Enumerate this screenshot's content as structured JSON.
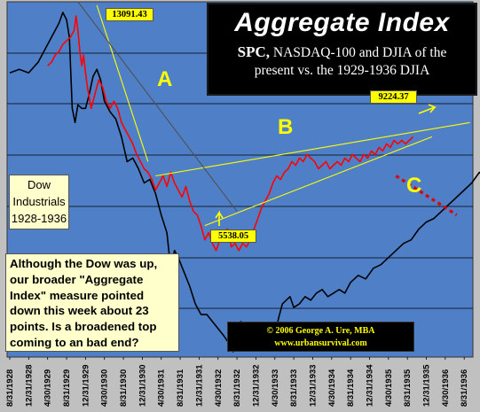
{
  "title": "Aggregate Index",
  "subtitle_bold": "SPC,",
  "subtitle_rest": " NASDAQ-100 and DJIA of the",
  "subtitle_line2": "present vs. the 1929-1936 DJIA",
  "dow_label": [
    "Dow",
    "Industrials",
    "1928-1936"
  ],
  "note_text": "Although the Dow was up, our broader \"Aggregate Index\" measure pointed down this week about 23 points.  Is a broadened top coming to an bad end?",
  "copyright": [
    "© 2006  George A. Ure, MBA",
    "www.urbansurvival.com"
  ],
  "callouts": {
    "peak": "13091.43",
    "low": "5538.05",
    "end": "9224.37"
  },
  "pattern_labels": {
    "a": "A",
    "b": "B",
    "c": "C"
  },
  "colors": {
    "plot_background": "#4f80c7",
    "chart_frame": "#c0c0c0",
    "dow_line": "#000000",
    "aggregate_line": "#ff0000",
    "trendline_yellow": "#ffff00",
    "trendline_dark": "#505050",
    "projection_dotted": "#dd0000",
    "gridline": "#000000"
  },
  "chart_data": {
    "type": "line",
    "x_tick_labels": [
      "8/31/1928",
      "12/31/1928",
      "4/30/1929",
      "8/31/1929",
      "12/31/1929",
      "4/30/1930",
      "8/31/1930",
      "12/31/1930",
      "4/30/1931",
      "8/31/1931",
      "12/31/1931",
      "4/30/1932",
      "8/31/1932",
      "12/31/1932",
      "4/30/1933",
      "8/31/1933",
      "12/31/1933",
      "4/30/1934",
      "8/31/1934",
      "12/31/1934",
      "4/30/1935",
      "8/31/1935",
      "12/31/1935",
      "4/30/1936",
      "8/31/1936"
    ],
    "grid": "horizontal",
    "series": [
      {
        "key": "dow_1928_1936",
        "points": [
          [
            0,
            0.8
          ],
          [
            0.5,
            0.81
          ],
          [
            1,
            0.8
          ],
          [
            1.5,
            0.83
          ],
          [
            2,
            0.88
          ],
          [
            2.3,
            0.91
          ],
          [
            2.6,
            0.94
          ],
          [
            2.8,
            0.97
          ],
          [
            3.0,
            0.95
          ],
          [
            3.15,
            0.9
          ],
          [
            3.3,
            0.7
          ],
          [
            3.45,
            0.66
          ],
          [
            3.6,
            0.71
          ],
          [
            3.8,
            0.7
          ],
          [
            4.0,
            0.7
          ],
          [
            4.2,
            0.74
          ],
          [
            4.4,
            0.79
          ],
          [
            4.6,
            0.81
          ],
          [
            4.8,
            0.78
          ],
          [
            5.0,
            0.72
          ],
          [
            5.3,
            0.69
          ],
          [
            5.6,
            0.67
          ],
          [
            5.9,
            0.62
          ],
          [
            6.2,
            0.55
          ],
          [
            6.5,
            0.56
          ],
          [
            6.8,
            0.53
          ],
          [
            7.1,
            0.49
          ],
          [
            7.4,
            0.5
          ],
          [
            7.7,
            0.46
          ],
          [
            8.0,
            0.4
          ],
          [
            8.3,
            0.35
          ],
          [
            8.5,
            0.25
          ],
          [
            8.7,
            0.3
          ],
          [
            8.9,
            0.28
          ],
          [
            9.2,
            0.24
          ],
          [
            9.5,
            0.2
          ],
          [
            9.8,
            0.15
          ],
          [
            10.1,
            0.12
          ],
          [
            10.4,
            0.12
          ],
          [
            10.7,
            0.1
          ],
          [
            11.0,
            0.08
          ],
          [
            11.3,
            0.06
          ],
          [
            11.5,
            0.045
          ],
          [
            11.65,
            0.03
          ],
          [
            11.8,
            0.015
          ],
          [
            12.0,
            0.06
          ],
          [
            12.2,
            0.1
          ],
          [
            12.5,
            0.085
          ],
          [
            12.8,
            0.07
          ],
          [
            13.1,
            0.08
          ],
          [
            13.4,
            0.065
          ],
          [
            13.6,
            0.055
          ],
          [
            13.8,
            0.048
          ],
          [
            14.0,
            0.06
          ],
          [
            14.2,
            0.11
          ],
          [
            14.4,
            0.15
          ],
          [
            14.6,
            0.16
          ],
          [
            14.8,
            0.17
          ],
          [
            15.0,
            0.14
          ],
          [
            15.3,
            0.15
          ],
          [
            15.6,
            0.17
          ],
          [
            15.9,
            0.16
          ],
          [
            16.2,
            0.18
          ],
          [
            16.5,
            0.19
          ],
          [
            16.8,
            0.17
          ],
          [
            17.1,
            0.18
          ],
          [
            17.4,
            0.19
          ],
          [
            17.7,
            0.18
          ],
          [
            18.0,
            0.21
          ],
          [
            18.4,
            0.23
          ],
          [
            18.8,
            0.22
          ],
          [
            19.2,
            0.25
          ],
          [
            19.6,
            0.26
          ],
          [
            20.0,
            0.28
          ],
          [
            20.4,
            0.3
          ],
          [
            20.8,
            0.32
          ],
          [
            21.2,
            0.33
          ],
          [
            21.6,
            0.36
          ],
          [
            22.0,
            0.38
          ],
          [
            22.4,
            0.39
          ],
          [
            22.8,
            0.41
          ],
          [
            23.2,
            0.43
          ],
          [
            23.6,
            0.45
          ],
          [
            24.0,
            0.47
          ],
          [
            24.4,
            0.49
          ],
          [
            24.8,
            0.52
          ],
          [
            25.0,
            0.51
          ]
        ]
      },
      {
        "key": "aggregate_index",
        "points": [
          [
            2.0,
            0.82
          ],
          [
            2.2,
            0.83
          ],
          [
            2.4,
            0.85
          ],
          [
            2.6,
            0.86
          ],
          [
            2.8,
            0.88
          ],
          [
            3.0,
            0.89
          ],
          [
            3.2,
            0.9
          ],
          [
            3.4,
            0.92
          ],
          [
            3.5,
            0.96
          ],
          [
            3.6,
            0.92
          ],
          [
            3.7,
            0.86
          ],
          [
            3.8,
            0.82
          ],
          [
            3.9,
            0.85
          ],
          [
            4.0,
            0.8
          ],
          [
            4.1,
            0.76
          ],
          [
            4.3,
            0.7
          ],
          [
            4.5,
            0.74
          ],
          [
            4.7,
            0.78
          ],
          [
            4.9,
            0.76
          ],
          [
            5.1,
            0.72
          ],
          [
            5.3,
            0.7
          ],
          [
            5.5,
            0.72
          ],
          [
            5.7,
            0.7
          ],
          [
            5.9,
            0.66
          ],
          [
            6.1,
            0.64
          ],
          [
            6.3,
            0.62
          ],
          [
            6.5,
            0.6
          ],
          [
            6.7,
            0.57
          ],
          [
            6.9,
            0.55
          ],
          [
            7.1,
            0.53
          ],
          [
            7.3,
            0.52
          ],
          [
            7.5,
            0.5
          ],
          [
            7.7,
            0.47
          ],
          [
            7.9,
            0.49
          ],
          [
            8.1,
            0.51
          ],
          [
            8.3,
            0.48
          ],
          [
            8.5,
            0.52
          ],
          [
            8.7,
            0.49
          ],
          [
            8.9,
            0.47
          ],
          [
            9.1,
            0.45
          ],
          [
            9.3,
            0.48
          ],
          [
            9.5,
            0.44
          ],
          [
            9.7,
            0.41
          ],
          [
            9.9,
            0.4
          ],
          [
            10.1,
            0.37
          ],
          [
            10.3,
            0.33
          ],
          [
            10.5,
            0.35
          ],
          [
            10.7,
            0.32
          ],
          [
            10.9,
            0.3
          ],
          [
            11.1,
            0.33
          ],
          [
            11.3,
            0.35
          ],
          [
            11.5,
            0.36
          ],
          [
            11.7,
            0.31
          ],
          [
            11.9,
            0.32
          ],
          [
            12.1,
            0.3
          ],
          [
            12.3,
            0.32
          ],
          [
            12.5,
            0.31
          ],
          [
            12.7,
            0.33
          ],
          [
            12.9,
            0.36
          ],
          [
            13.1,
            0.39
          ],
          [
            13.3,
            0.42
          ],
          [
            13.5,
            0.44
          ],
          [
            13.7,
            0.46
          ],
          [
            13.9,
            0.49
          ],
          [
            14.1,
            0.51
          ],
          [
            14.3,
            0.5
          ],
          [
            14.5,
            0.52
          ],
          [
            14.7,
            0.53
          ],
          [
            14.9,
            0.55
          ],
          [
            15.1,
            0.54
          ],
          [
            15.3,
            0.56
          ],
          [
            15.5,
            0.55
          ],
          [
            15.7,
            0.57
          ],
          [
            15.9,
            0.56
          ],
          [
            16.1,
            0.55
          ],
          [
            16.3,
            0.53
          ],
          [
            16.5,
            0.54
          ],
          [
            16.7,
            0.55
          ],
          [
            16.9,
            0.53
          ],
          [
            17.1,
            0.54
          ],
          [
            17.3,
            0.55
          ],
          [
            17.5,
            0.54
          ],
          [
            17.7,
            0.56
          ],
          [
            17.9,
            0.55
          ],
          [
            18.1,
            0.57
          ],
          [
            18.3,
            0.56
          ],
          [
            18.5,
            0.55
          ],
          [
            18.7,
            0.57
          ],
          [
            18.9,
            0.56
          ],
          [
            19.1,
            0.58
          ],
          [
            19.3,
            0.57
          ],
          [
            19.5,
            0.59
          ],
          [
            19.7,
            0.58
          ],
          [
            19.9,
            0.6
          ],
          [
            20.1,
            0.59
          ],
          [
            20.3,
            0.61
          ],
          [
            20.5,
            0.6
          ],
          [
            20.7,
            0.61
          ],
          [
            20.9,
            0.6
          ],
          [
            21.1,
            0.61
          ],
          [
            21.3,
            0.62
          ]
        ]
      }
    ],
    "annotation_lines": [
      {
        "key": "yellow_line_from_peak",
        "from": [
          4.6,
          0.99
        ],
        "to": [
          7.3,
          0.55
        ]
      },
      {
        "key": "yellow_upper_trend",
        "from": [
          7.7,
          0.51
        ],
        "to": [
          24.3,
          0.66
        ]
      },
      {
        "key": "yellow_lower_trend",
        "from": [
          10.3,
          0.37
        ],
        "to": [
          22.3,
          0.62
        ]
      },
      {
        "key": "dark_downtrend",
        "from": [
          3.6,
          1.0
        ],
        "to": [
          12.0,
          0.41
        ]
      },
      {
        "key": "red_dotted_projection",
        "from": [
          20.4,
          0.51
        ],
        "to": [
          23.6,
          0.4
        ]
      }
    ]
  }
}
